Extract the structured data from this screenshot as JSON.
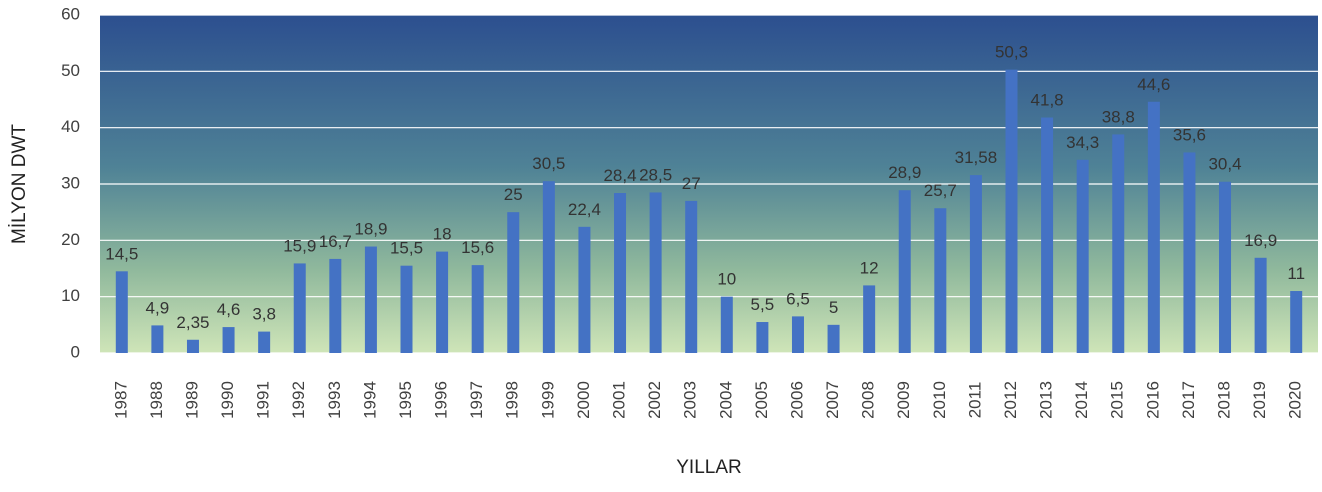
{
  "chart_data": {
    "type": "bar",
    "y_label": "MİLYON DWT",
    "x_label": "YILLAR",
    "categories": [
      "1987",
      "1988",
      "1989",
      "1990",
      "1991",
      "1992",
      "1993",
      "1994",
      "1995",
      "1996",
      "1997",
      "1998",
      "1999",
      "2000",
      "2001",
      "2002",
      "2003",
      "2004",
      "2005",
      "2006",
      "2007",
      "2008",
      "2009",
      "2010",
      "2011",
      "2012",
      "2013",
      "2014",
      "2015",
      "2016",
      "2017",
      "2018",
      "2019",
      "2020"
    ],
    "values": [
      14.5,
      4.9,
      2.35,
      4.6,
      3.8,
      15.9,
      16.7,
      18.9,
      15.5,
      18,
      15.6,
      25,
      30.5,
      22.4,
      28.4,
      28.5,
      27,
      10,
      5.5,
      6.5,
      5,
      12,
      28.9,
      25.7,
      31.58,
      50.3,
      41.8,
      34.3,
      38.8,
      44.6,
      35.6,
      30.4,
      16.9,
      11
    ],
    "value_labels": [
      "14,5",
      "4,9",
      "2,35",
      "4,6",
      "3,8",
      "15,9",
      "16,7",
      "18,9",
      "15,5",
      "18",
      "15,6",
      "25",
      "30,5",
      "22,4",
      "28,4",
      "28,5",
      "27",
      "10",
      "5,5",
      "6,5",
      "5",
      "12",
      "28,9",
      "25,7",
      "31,58",
      "50,3",
      "41,8",
      "34,3",
      "38,8",
      "44,6",
      "35,6",
      "30,4",
      "16,9",
      "11"
    ],
    "color": "#4472c4",
    "ylim": [
      0,
      60
    ],
    "yticks": [
      0,
      10,
      20,
      30,
      40,
      50,
      60
    ],
    "grid": true
  }
}
